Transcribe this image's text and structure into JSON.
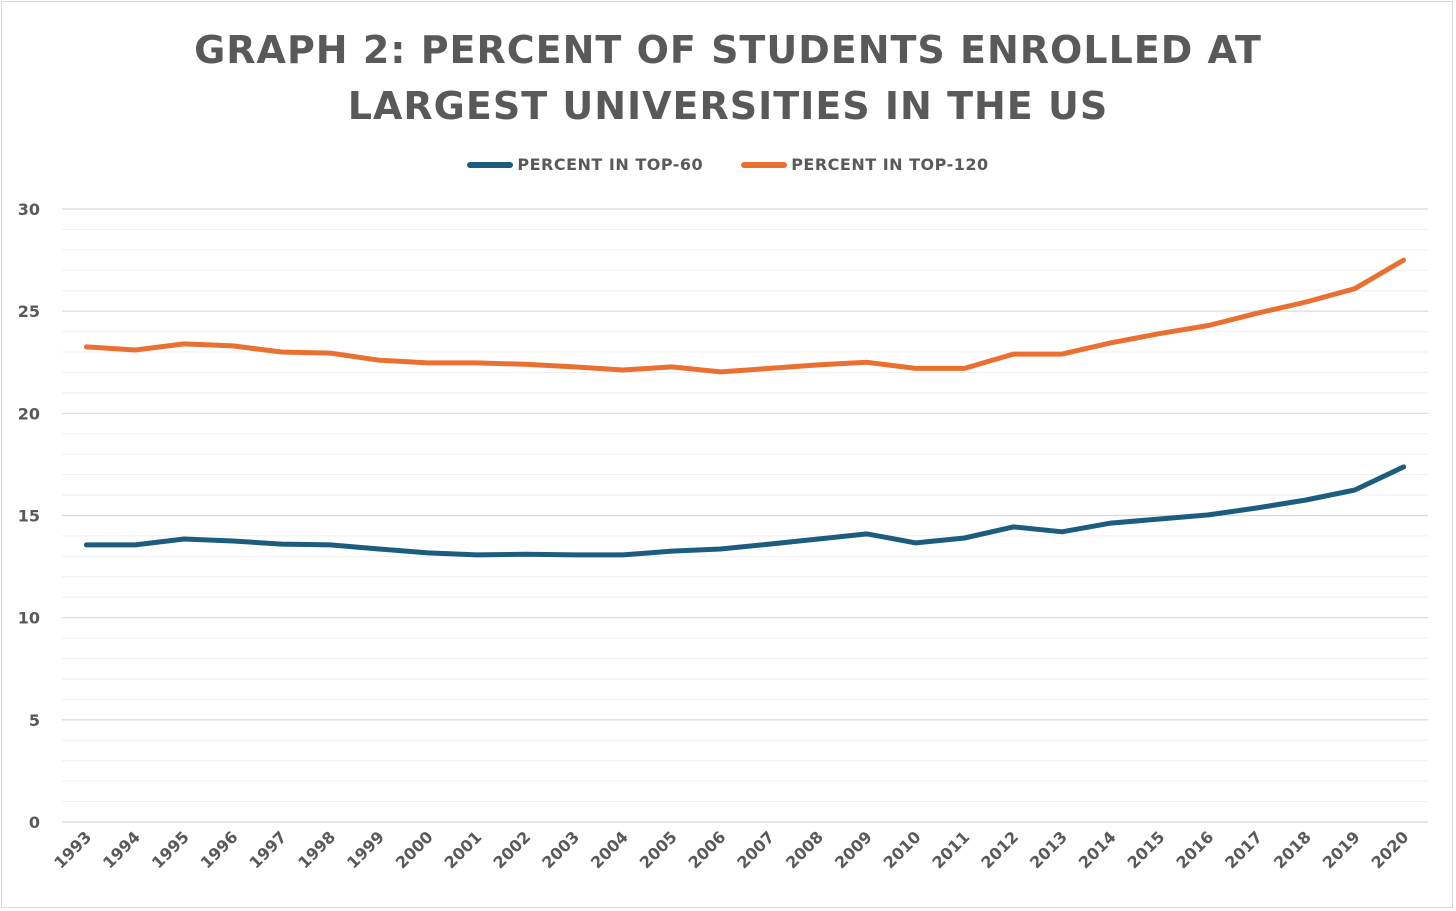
{
  "chart_data": {
    "type": "line",
    "title_line1": "GRAPH 2: PERCENT OF STUDENTS ENROLLED AT",
    "title_line2": "LARGEST UNIVERSITIES IN THE US",
    "xlabel": "",
    "ylabel": "",
    "ylim": [
      0,
      30
    ],
    "yticks": [
      "0",
      "5",
      "10",
      "15",
      "20",
      "25",
      "30"
    ],
    "grid": true,
    "legend_position": "top-center",
    "categories": [
      "1993",
      "1994",
      "1995",
      "1996",
      "1997",
      "1998",
      "1999",
      "2000",
      "2001",
      "2002",
      "2003",
      "2004",
      "2005",
      "2006",
      "2007",
      "2008",
      "2009",
      "2010",
      "2011",
      "2012",
      "2013",
      "2014",
      "2015",
      "2016",
      "2017",
      "2018",
      "2019",
      "2020"
    ],
    "series": [
      {
        "name": "PERCENT IN TOP-60",
        "color": "#1c5d7f",
        "values": [
          13.56,
          13.56,
          13.85,
          13.75,
          13.6,
          13.56,
          13.36,
          13.17,
          13.07,
          13.1,
          13.07,
          13.07,
          13.26,
          13.36,
          13.6,
          13.85,
          14.1,
          13.66,
          13.9,
          14.44,
          14.2,
          14.63,
          14.83,
          15.03,
          15.37,
          15.76,
          16.25,
          17.38
        ]
      },
      {
        "name": "PERCENT IN TOP-120",
        "color": "#ea7031",
        "values": [
          23.25,
          23.1,
          23.4,
          23.3,
          23.0,
          22.95,
          22.6,
          22.47,
          22.47,
          22.4,
          22.27,
          22.12,
          22.27,
          22.03,
          22.2,
          22.37,
          22.5,
          22.2,
          22.2,
          22.9,
          22.9,
          23.45,
          23.9,
          24.3,
          24.9,
          25.45,
          26.1,
          27.5
        ]
      }
    ]
  }
}
